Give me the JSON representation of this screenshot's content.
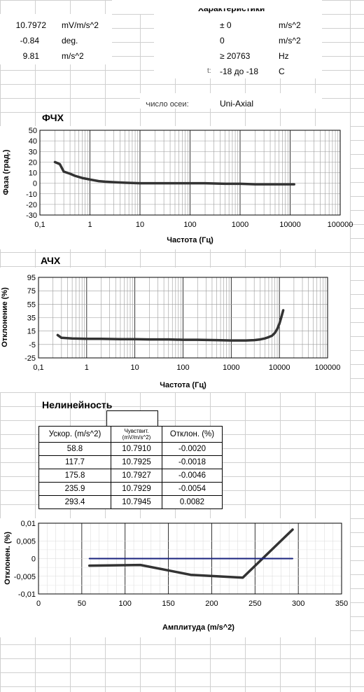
{
  "top_left": {
    "rows": [
      {
        "value": "10.7972",
        "unit": "mV/m/s^2"
      },
      {
        "value": "-0.84",
        "unit": "deg."
      },
      {
        "value": "9.81",
        "unit": "m/s^2"
      }
    ]
  },
  "top_right": {
    "header": "Характеристики",
    "rows": [
      {
        "label": "",
        "value": "± 0",
        "unit": "m/s^2"
      },
      {
        "label": "",
        "value": "0",
        "unit": "m/s^2"
      },
      {
        "label": "",
        "value": "≥ 20763",
        "unit": "Hz"
      },
      {
        "label": "t:",
        "value": "-18 до -18",
        "unit": "C"
      },
      {
        "label": "Число осей:",
        "value": "Uni-Axial",
        "unit": ""
      }
    ]
  },
  "chart_data": [
    {
      "type": "line",
      "title": "ФЧХ",
      "xlabel": "Частота (Гц)",
      "ylabel": "Фаза (град.)",
      "xscale": "log",
      "xlim": [
        0.1,
        100000
      ],
      "ylim": [
        -30,
        50
      ],
      "xticks": [
        "0,1",
        "1",
        "10",
        "100",
        "1000",
        "10000",
        "100000"
      ],
      "yticks": [
        "50",
        "40",
        "30",
        "20",
        "10",
        "0",
        "-10",
        "-20",
        "-30"
      ],
      "series": [
        {
          "x": [
            0.2,
            0.25,
            0.3,
            0.4,
            0.5,
            0.7,
            1,
            1.5,
            2,
            3,
            5,
            10,
            20,
            50,
            100,
            200,
            500,
            1000,
            2000,
            5000,
            10000,
            12000
          ],
          "y": [
            20,
            18,
            11,
            9,
            7,
            5,
            3.5,
            2,
            1.5,
            1,
            0.5,
            0,
            0,
            0,
            0,
            0,
            -0.5,
            -0.5,
            -1,
            -1,
            -1,
            -1
          ]
        }
      ]
    },
    {
      "type": "line",
      "title": "АЧХ",
      "xlabel": "Частота (Гц)",
      "ylabel": "Отклонение (%)",
      "xscale": "log",
      "xlim": [
        0.1,
        100000
      ],
      "ylim": [
        -25,
        95
      ],
      "xticks": [
        "0,1",
        "1",
        "10",
        "100",
        "1000",
        "10000",
        "100000"
      ],
      "yticks": [
        "95",
        "75",
        "55",
        "35",
        "15",
        "-5",
        "-25"
      ],
      "series": [
        {
          "x": [
            0.25,
            0.3,
            0.5,
            1,
            2,
            5,
            10,
            20,
            50,
            100,
            200,
            500,
            1000,
            2000,
            3000,
            4000,
            5000,
            6000,
            7000,
            8000,
            9000,
            10000,
            11000,
            12000
          ],
          "y": [
            9,
            5,
            4,
            3.5,
            3.5,
            3,
            3,
            2.5,
            2.5,
            2,
            2,
            1.5,
            1,
            1,
            1.5,
            2.5,
            4,
            6,
            8,
            12,
            18,
            26,
            36,
            46
          ]
        }
      ]
    },
    {
      "type": "line",
      "title": "",
      "xlabel": "Амплитуда (m/s^2)",
      "ylabel": "Отклонен. (%)",
      "xlim": [
        0,
        350
      ],
      "ylim": [
        -0.01,
        0.01
      ],
      "xticks": [
        "0",
        "50",
        "100",
        "150",
        "200",
        "250",
        "300",
        "350"
      ],
      "yticks": [
        "0,01",
        "0,005",
        "0",
        "-0,005",
        "-0,01"
      ],
      "series": [
        {
          "name": "",
          "color": "#333333",
          "x": [
            58.8,
            117.7,
            175.8,
            235.9,
            293.4
          ],
          "y": [
            -0.002,
            -0.0018,
            -0.0046,
            -0.0054,
            0.0082
          ]
        },
        {
          "name": "",
          "color": "#1a237e",
          "x": [
            58.8,
            293.4
          ],
          "y": [
            0,
            0
          ]
        }
      ]
    }
  ],
  "nonlinearity": {
    "title": "Нелинейность",
    "headers": [
      "Ускор. (m/s^2)",
      "Чувствит. (mV/m/s^2)",
      "Отклон. (%)"
    ],
    "rows": [
      [
        "58.8",
        "10.7910",
        "-0.0020"
      ],
      [
        "117.7",
        "10.7925",
        "-0.0018"
      ],
      [
        "175.8",
        "10.7927",
        "-0.0046"
      ],
      [
        "235.9",
        "10.7929",
        "-0.0054"
      ],
      [
        "293.4",
        "10.7945",
        "0.0082"
      ]
    ]
  }
}
